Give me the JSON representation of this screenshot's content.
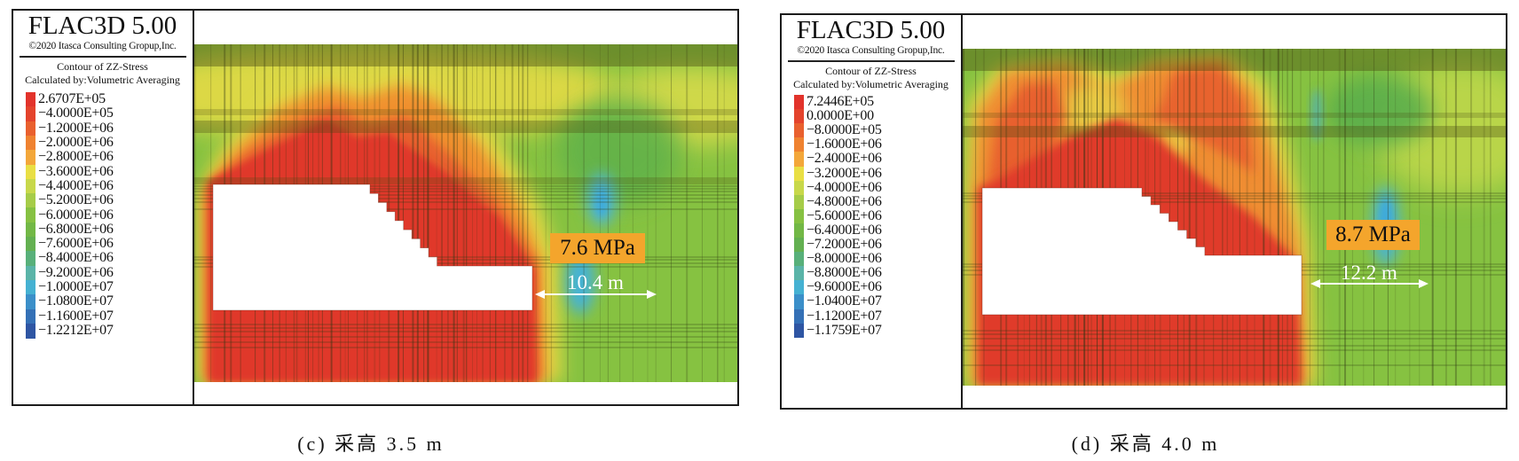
{
  "chart_data": [
    {
      "type": "heatmap",
      "software_title": "FLAC3D 5.00",
      "copyright": "©2020 Itasca Consulting Gropup,Inc.",
      "title": "Contour of ZZ-Stress",
      "subtitle": "Calculated by:Volumetric Averaging",
      "legend_position": "left",
      "colorbar_labels": [
        "2.6707E+05",
        "−4.0000E+05",
        "−1.2000E+06",
        "−2.0000E+06",
        "−2.8000E+06",
        "−3.6000E+06",
        "−4.4000E+06",
        "−5.2000E+06",
        "−6.0000E+06",
        "−6.8000E+06",
        "−7.6000E+06",
        "−8.4000E+06",
        "−9.2000E+06",
        "−1.0000E+07",
        "−1.0800E+07",
        "−1.1600E+07",
        "−1.2212E+07"
      ],
      "colorbar_levels": [
        267070,
        -400000,
        -1200000,
        -2000000,
        -2800000,
        -3600000,
        -4400000,
        -5200000,
        -6000000,
        -6800000,
        -7600000,
        -8400000,
        -9200000,
        -10000000,
        -10800000,
        -11600000,
        -12212000
      ],
      "value_range": [
        -12212000,
        267070
      ],
      "colormap": [
        "#e2332b",
        "#e4432c",
        "#e9602e",
        "#ef8230",
        "#f3a73a",
        "#e9df44",
        "#c8d84a",
        "#a6cc48",
        "#86c142",
        "#72b846",
        "#63b051",
        "#58b07a",
        "#5ab4a8",
        "#45b1d2",
        "#3b8fc9",
        "#3470b6",
        "#2e55a3"
      ],
      "annotations": [
        {
          "type": "peak-stress",
          "text": "7.6 MPa",
          "value_MPa": 7.6,
          "box_color": "#f4a52c"
        },
        {
          "type": "distance-arrow",
          "text": "10.4 m",
          "value_m": 10.4
        }
      ],
      "mining_height_m": 3.5,
      "caption": "(c) 采高 3.5 m"
    },
    {
      "type": "heatmap",
      "software_title": "FLAC3D 5.00",
      "copyright": "©2020 Itasca Consulting Gropup,Inc.",
      "title": "Contour of ZZ-Stress",
      "subtitle": "Calculated by:Volumetric Averaging",
      "legend_position": "left",
      "colorbar_labels": [
        "7.2446E+05",
        "0.0000E+00",
        "−8.0000E+05",
        "−1.6000E+06",
        "−2.4000E+06",
        "−3.2000E+06",
        "−4.0000E+06",
        "−4.8000E+06",
        "−5.6000E+06",
        "−6.4000E+06",
        "−7.2000E+06",
        "−8.0000E+06",
        "−8.8000E+06",
        "−9.6000E+06",
        "−1.0400E+07",
        "−1.1200E+07",
        "−1.1759E+07"
      ],
      "colorbar_levels": [
        724460,
        0,
        -800000,
        -1600000,
        -2400000,
        -3200000,
        -4000000,
        -4800000,
        -5600000,
        -6400000,
        -7200000,
        -8000000,
        -8800000,
        -9600000,
        -10400000,
        -11200000,
        -11759000
      ],
      "value_range": [
        -11759000,
        724460
      ],
      "colormap": [
        "#e2332b",
        "#e4432c",
        "#e9602e",
        "#ef8230",
        "#f3a73a",
        "#e9df44",
        "#c8d84a",
        "#a6cc48",
        "#86c142",
        "#72b846",
        "#63b051",
        "#58b07a",
        "#5ab4a8",
        "#45b1d2",
        "#3b8fc9",
        "#3470b6",
        "#2e55a3"
      ],
      "annotations": [
        {
          "type": "peak-stress",
          "text": "8.7 MPa",
          "value_MPa": 8.7,
          "box_color": "#f4a52c"
        },
        {
          "type": "distance-arrow",
          "text": "12.2 m",
          "value_m": 12.2
        }
      ],
      "mining_height_m": 4.0,
      "caption": "(d) 采高 4.0 m"
    }
  ]
}
